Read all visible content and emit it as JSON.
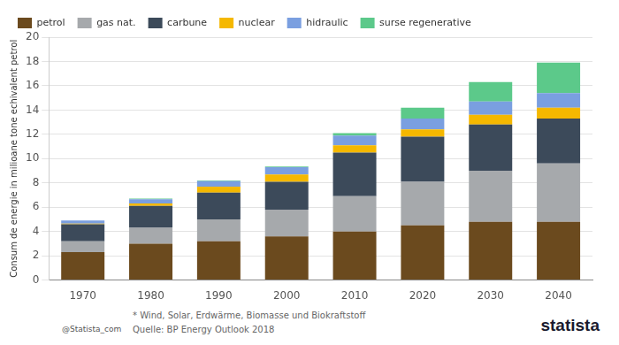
{
  "chart_data": {
    "type": "bar",
    "stacked": true,
    "ylabel": "Consum de energie in milioane tone echivalent petrol",
    "categories": [
      "1970",
      "1980",
      "1990",
      "2000",
      "2010",
      "2020",
      "2030",
      "2040"
    ],
    "series": [
      {
        "name": "petrol",
        "color": "#6b4a1e",
        "values": [
          2.3,
          3.0,
          3.2,
          3.6,
          4.0,
          4.5,
          4.8,
          4.8
        ]
      },
      {
        "name": "gas nat.",
        "color": "#a6a9ac",
        "values": [
          0.9,
          1.3,
          1.8,
          2.2,
          2.9,
          3.6,
          4.2,
          4.8
        ]
      },
      {
        "name": "carbune",
        "color": "#3c4a5a",
        "values": [
          1.4,
          1.8,
          2.2,
          2.3,
          3.6,
          3.7,
          3.8,
          3.7
        ]
      },
      {
        "name": "nuclear",
        "color": "#f5b800",
        "values": [
          0.05,
          0.2,
          0.5,
          0.6,
          0.6,
          0.6,
          0.8,
          0.9
        ]
      },
      {
        "name": "hidraulic",
        "color": "#7a9fe0",
        "values": [
          0.25,
          0.35,
          0.45,
          0.6,
          0.8,
          0.9,
          1.1,
          1.2
        ]
      },
      {
        "name": "surse regenerative",
        "color": "#5cc98a",
        "values": [
          0,
          0.05,
          0.05,
          0.05,
          0.2,
          0.9,
          1.6,
          2.5
        ]
      }
    ],
    "ylim": [
      0,
      20
    ],
    "yticks": [
      0,
      2,
      4,
      6,
      8,
      10,
      12,
      14,
      16,
      18,
      20
    ],
    "grid": true,
    "legend": "top",
    "annotations": [
      "@Statista_com",
      "* Wind, Solar, Erdwärme, Biomasse und Biokraftstoff",
      "Quelle: BP Energy Outlook 2018",
      "statista"
    ]
  }
}
